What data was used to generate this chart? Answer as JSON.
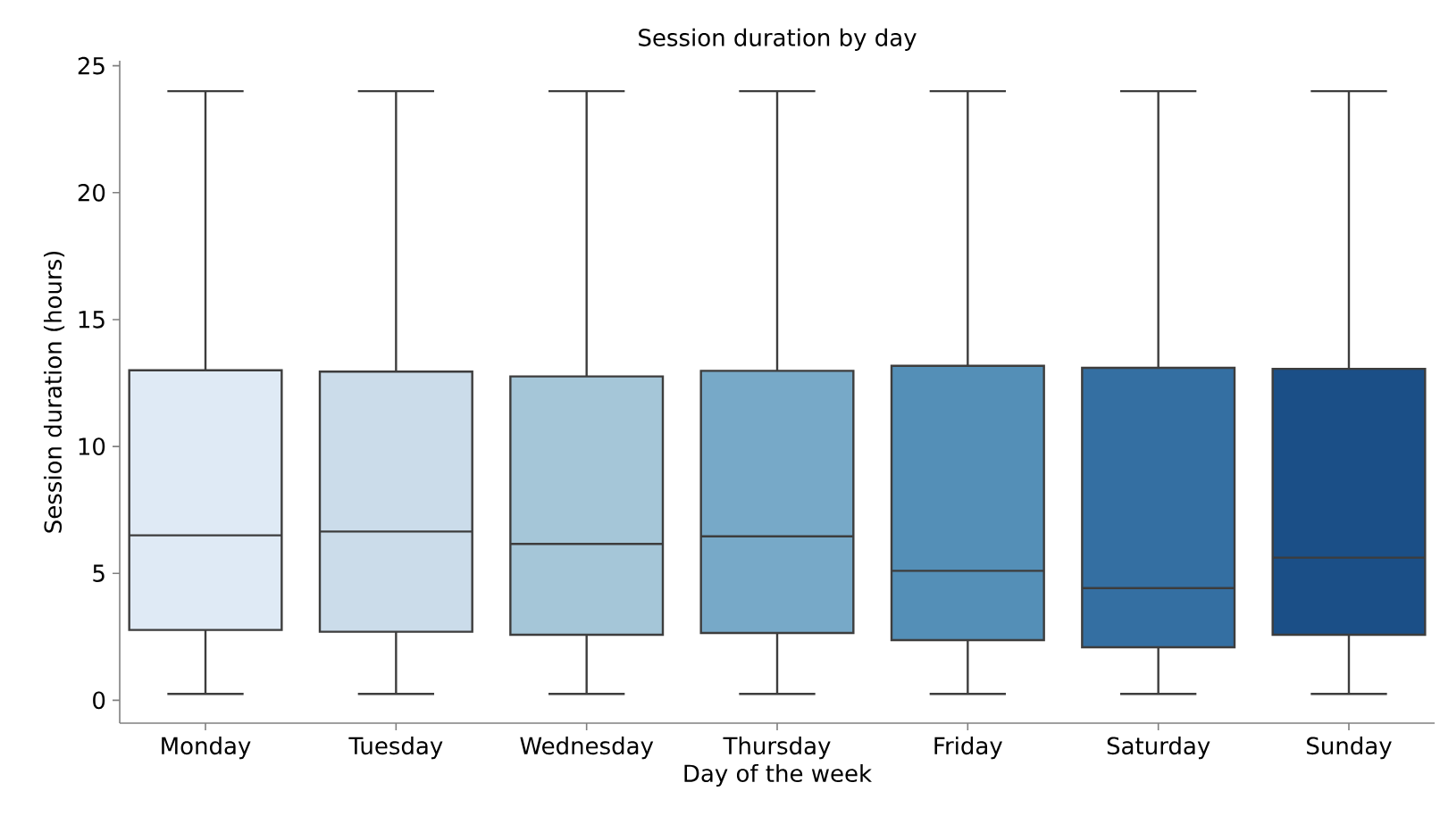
{
  "chart_data": {
    "type": "box",
    "title": "Session duration by day",
    "xlabel": "Day of the week",
    "ylabel": "Session duration (hours)",
    "categories": [
      "Monday",
      "Tuesday",
      "Wednesday",
      "Thursday",
      "Friday",
      "Saturday",
      "Sunday"
    ],
    "colors": [
      "#dfeaf5",
      "#cbdcea",
      "#a5c6d8",
      "#77a9c8",
      "#548fb7",
      "#346fa2",
      "#1b4f87"
    ],
    "boxes": [
      {
        "low": 0.25,
        "q1": 2.77,
        "median": 6.5,
        "q3": 13.0,
        "high": 24
      },
      {
        "low": 0.25,
        "q1": 2.7,
        "median": 6.65,
        "q3": 12.95,
        "high": 24
      },
      {
        "low": 0.25,
        "q1": 2.58,
        "median": 6.16,
        "q3": 12.76,
        "high": 24
      },
      {
        "low": 0.25,
        "q1": 2.65,
        "median": 6.46,
        "q3": 12.98,
        "high": 24
      },
      {
        "low": 0.25,
        "q1": 2.37,
        "median": 5.1,
        "q3": 13.18,
        "high": 24
      },
      {
        "low": 0.25,
        "q1": 2.09,
        "median": 4.42,
        "q3": 13.1,
        "high": 24
      },
      {
        "low": 0.25,
        "q1": 2.58,
        "median": 5.62,
        "q3": 13.06,
        "high": 24
      }
    ],
    "ylim": [
      -0.9,
      25.2
    ],
    "yticks": [
      0,
      5,
      10,
      15,
      20,
      25
    ],
    "grid": false
  }
}
